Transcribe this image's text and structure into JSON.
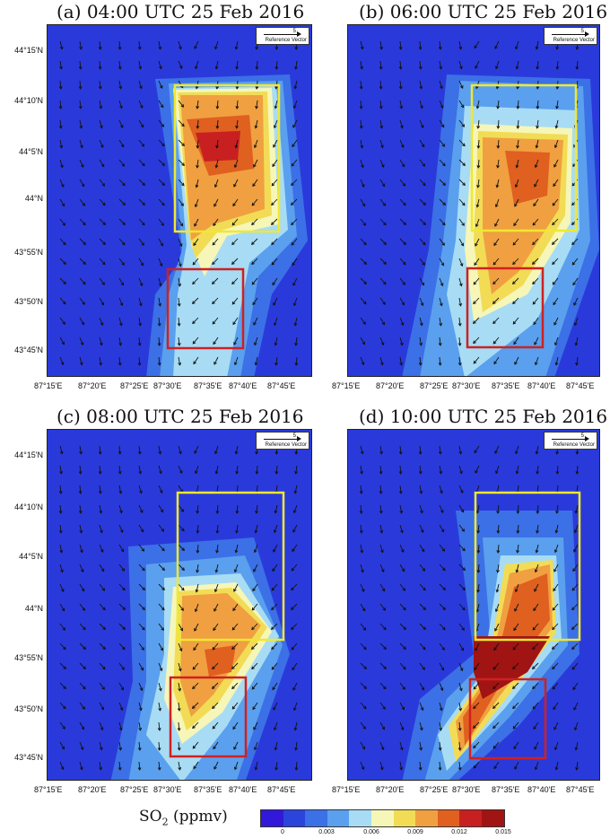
{
  "panels": [
    {
      "title": "(a) 04:00 UTC 25 Feb 2016"
    },
    {
      "title": "(b) 06:00 UTC 25 Feb 2016"
    },
    {
      "title": "(c) 08:00 UTC 25 Feb 2016"
    },
    {
      "title": "(d) 10:00 UTC 25 Feb 2016"
    }
  ],
  "y_ticks": [
    "44°15'N",
    "44°10'N",
    "44°5'N",
    "44°N",
    "43°55'N",
    "43°50'N",
    "43°45'N"
  ],
  "x_ticks": [
    "87°15'E",
    "87°20'E",
    "87°25'E",
    "87°30'E",
    "87°35'E",
    "87°40'E",
    "87°45'E"
  ],
  "reference_vector": {
    "value": "5",
    "label": "Reference Vector"
  },
  "legend": {
    "title_main": "SO",
    "title_sub": "2",
    "title_unit": " (ppmv)",
    "ticks": [
      "0",
      "0.003",
      "0.006",
      "0.009",
      "0.012",
      "0.015"
    ],
    "colors": [
      "#3218d8",
      "#2a44dc",
      "#3c70e6",
      "#5aa0ee",
      "#a8dcf4",
      "#f6f6b8",
      "#f2dc56",
      "#f0a040",
      "#e06020",
      "#c82020",
      "#a01414"
    ]
  },
  "boxes": {
    "yellow": "#f0e830",
    "red": "#d02020"
  }
}
